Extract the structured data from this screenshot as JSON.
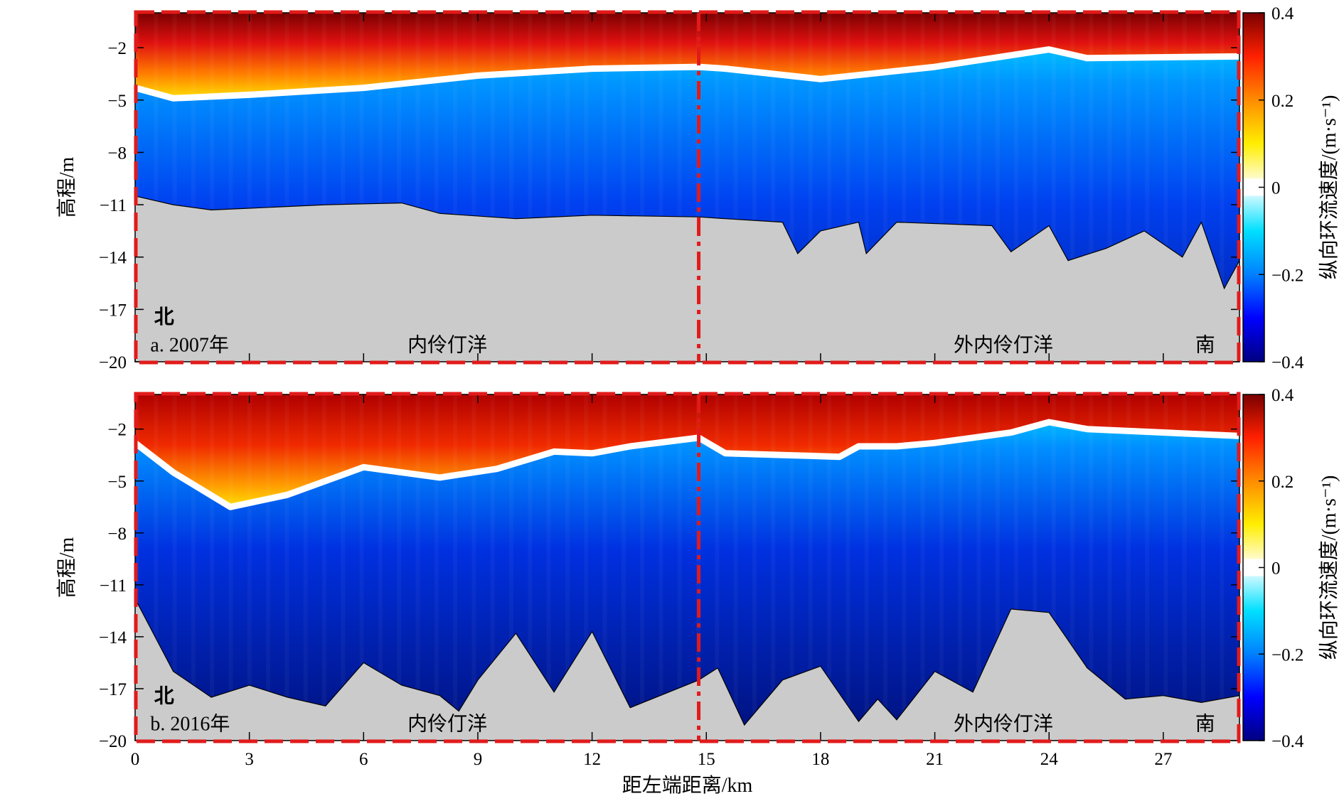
{
  "chart_data": {
    "type": "heatmap",
    "x_label": "距左端距离/km",
    "x_range": [
      0,
      29
    ],
    "x_ticks": [
      0,
      3,
      6,
      9,
      12,
      15,
      18,
      21,
      24,
      27
    ],
    "y_label": "高程/m",
    "y_range": [
      -20,
      0
    ],
    "y_ticks": [
      -2,
      -5,
      -8,
      -11,
      -14,
      -17,
      -20
    ],
    "colorbar": {
      "label": "纵向环流速度/(m·s⁻¹)",
      "range": [
        -0.4,
        0.4
      ],
      "ticks": [
        "0.4",
        "0.2",
        "0",
        "−0.2",
        "−0.4"
      ],
      "stops": [
        "#000080",
        "#0000ff",
        "#0080ff",
        "#00e0ff",
        "#ffffff",
        "#ffee00",
        "#ff8c00",
        "#ff2000",
        "#7a0000"
      ]
    },
    "divider_x": 14.8,
    "panels": [
      {
        "id": "a",
        "label": "a. 2007年",
        "north": "北",
        "south": "南",
        "inner": "内伶仃洋",
        "outer": "外内伶仃洋",
        "zero_line": [
          [
            0,
            -4.3
          ],
          [
            1,
            -4.9
          ],
          [
            3,
            -4.7
          ],
          [
            6,
            -4.3
          ],
          [
            9,
            -3.6
          ],
          [
            12,
            -3.2
          ],
          [
            14.8,
            -3.1
          ],
          [
            15.5,
            -3.2
          ],
          [
            18,
            -3.8
          ],
          [
            21,
            -3.1
          ],
          [
            24,
            -2.1
          ],
          [
            25,
            -2.6
          ],
          [
            29,
            -2.5
          ]
        ],
        "bottom": [
          [
            0,
            -10.5
          ],
          [
            1,
            -11
          ],
          [
            2,
            -11.3
          ],
          [
            3,
            -11.2
          ],
          [
            5,
            -11
          ],
          [
            7,
            -10.9
          ],
          [
            8,
            -11.5
          ],
          [
            10,
            -11.8
          ],
          [
            12,
            -11.6
          ],
          [
            14.8,
            -11.7
          ],
          [
            15.5,
            -11.8
          ],
          [
            17,
            -12
          ],
          [
            17.4,
            -13.8
          ],
          [
            18,
            -12.5
          ],
          [
            19,
            -12
          ],
          [
            19.2,
            -13.8
          ],
          [
            20,
            -12
          ],
          [
            22.5,
            -12.2
          ],
          [
            23,
            -13.7
          ],
          [
            24,
            -12.2
          ],
          [
            24.5,
            -14.2
          ],
          [
            25.5,
            -13.5
          ],
          [
            26.5,
            -12.5
          ],
          [
            27.5,
            -14
          ],
          [
            28,
            -12
          ],
          [
            28.6,
            -15.8
          ],
          [
            29,
            -14.2
          ]
        ]
      },
      {
        "id": "b",
        "label": "b. 2016年",
        "north": "北",
        "south": "南",
        "inner": "内伶仃洋",
        "outer": "外内伶仃洋",
        "zero_line": [
          [
            0,
            -2.8
          ],
          [
            1,
            -4.5
          ],
          [
            2.5,
            -6.5
          ],
          [
            4,
            -5.8
          ],
          [
            6,
            -4.2
          ],
          [
            8,
            -4.8
          ],
          [
            9.5,
            -4.3
          ],
          [
            11,
            -3.3
          ],
          [
            12,
            -3.4
          ],
          [
            13,
            -3
          ],
          [
            14.8,
            -2.5
          ],
          [
            15.5,
            -3.4
          ],
          [
            17,
            -3.5
          ],
          [
            18.5,
            -3.6
          ],
          [
            19,
            -3
          ],
          [
            20,
            -3
          ],
          [
            21,
            -2.8
          ],
          [
            22,
            -2.5
          ],
          [
            23,
            -2.2
          ],
          [
            24,
            -1.6
          ],
          [
            25,
            -2
          ],
          [
            29,
            -2.4
          ]
        ],
        "bottom": [
          [
            0,
            -11.8
          ],
          [
            1,
            -16
          ],
          [
            2,
            -17.5
          ],
          [
            3,
            -16.8
          ],
          [
            4,
            -17.5
          ],
          [
            5,
            -18
          ],
          [
            6,
            -15.5
          ],
          [
            7,
            -16.8
          ],
          [
            8,
            -17.4
          ],
          [
            8.5,
            -18.3
          ],
          [
            9,
            -16.5
          ],
          [
            10,
            -13.8
          ],
          [
            11,
            -17.2
          ],
          [
            12,
            -13.7
          ],
          [
            13,
            -18.1
          ],
          [
            14.8,
            -16.5
          ],
          [
            15.3,
            -15.8
          ],
          [
            16,
            -19.1
          ],
          [
            17,
            -16.5
          ],
          [
            18,
            -15.7
          ],
          [
            19,
            -18.9
          ],
          [
            19.5,
            -17.6
          ],
          [
            20,
            -18.8
          ],
          [
            21,
            -16
          ],
          [
            22,
            -17.2
          ],
          [
            23,
            -12.4
          ],
          [
            24,
            -12.6
          ],
          [
            25,
            -15.8
          ],
          [
            26,
            -17.6
          ],
          [
            27,
            -17.4
          ],
          [
            28,
            -17.8
          ],
          [
            29,
            -17.4
          ]
        ]
      }
    ]
  }
}
